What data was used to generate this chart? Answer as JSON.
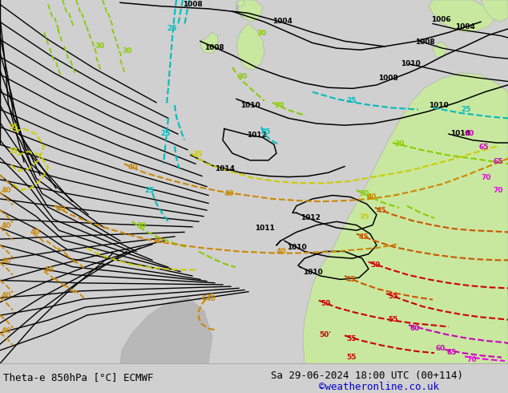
{
  "title_left": "Theta-e 850hPa [°C] ECMWF",
  "title_right": "Sa 29-06-2024 18:00 UTC (00+114)",
  "credit": "©weatheronline.co.uk",
  "bg_color": "#d0d0d0",
  "green_land_color": "#c8e8a0",
  "gray_land_color": "#b8b8b8",
  "bottom_bg": "#ffffff",
  "bottom_text_color": "#000000",
  "credit_color": "#0000cc",
  "font_size_bottom": 9,
  "isobar_color": "#000000",
  "c25": "#00bbbb",
  "c30": "#88cc00",
  "c35": "#cccc00",
  "c40": "#cc8800",
  "c45": "#cc5500",
  "c50": "#cc0000",
  "c55": "#cc0000",
  "c60": "#cc00bb",
  "c65": "#cc00bb",
  "c70": "#ee00ee"
}
